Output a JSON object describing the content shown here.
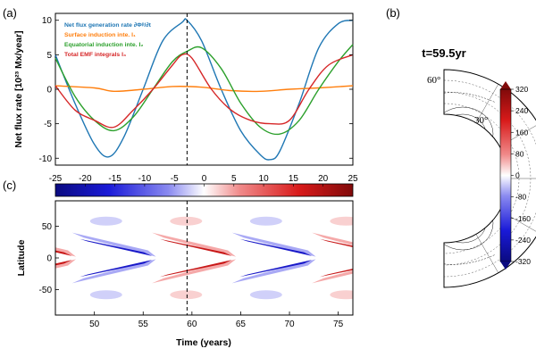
{
  "panels": {
    "a": "(a)",
    "b": "(b)",
    "c": "(c)"
  },
  "colors": {
    "net": "#1f77b4",
    "surface": "#ff7f0e",
    "equatorial": "#2ca02c",
    "emf": "#d62728"
  },
  "chart_data": [
    {
      "type": "line",
      "ylabel": "Net flux rate [10²³ Mx/year]",
      "xlim": [
        46,
        76.5
      ],
      "ylim": [
        -11,
        11
      ],
      "yticks": [
        "-10",
        "-5",
        "0",
        "5",
        "10"
      ],
      "vline_x": 59.5,
      "legend_placement": "top-left",
      "series": [
        {
          "name": "Net flux generation rate ∂Φᵖ/∂t",
          "color_key": "net",
          "x": [
            46,
            48,
            50,
            51.5,
            53,
            55,
            57,
            59,
            59.5,
            61,
            63,
            65,
            67,
            68,
            69,
            71,
            73,
            75,
            76.5
          ],
          "y": [
            5,
            -2,
            -8,
            -9.8,
            -7,
            0,
            7,
            9.7,
            10,
            7,
            0,
            -6,
            -9.5,
            -10.2,
            -9,
            -2,
            6,
            9.5,
            10
          ]
        },
        {
          "name": "Surface induction inte. I₁",
          "color_key": "surface",
          "x": [
            46,
            50,
            52,
            55,
            58,
            61,
            64,
            67,
            70,
            73,
            76.5
          ],
          "y": [
            0.5,
            0.2,
            -0.3,
            0,
            0.4,
            0.3,
            -0.2,
            -0.3,
            0,
            0.2,
            0.5
          ]
        },
        {
          "name": "Equatorial induction inte. I₂",
          "color_key": "equatorial",
          "x": [
            46,
            48,
            50,
            52,
            54,
            56,
            58,
            59.5,
            61,
            63,
            65,
            67,
            69,
            71,
            73,
            75,
            76.5
          ],
          "y": [
            4.5,
            -1,
            -4.5,
            -6,
            -4,
            0,
            4,
            5.5,
            6,
            3,
            -2,
            -5.5,
            -6.5,
            -4.5,
            0,
            4,
            6.5
          ]
        },
        {
          "name": "Total EMF integrals I₃",
          "color_key": "emf",
          "x": [
            46,
            48,
            50,
            52,
            54,
            56,
            58,
            59,
            60,
            62,
            64,
            66,
            68,
            70,
            72,
            74,
            76.5
          ],
          "y": [
            0.5,
            -3,
            -4.5,
            -5.5,
            -3,
            0,
            3.5,
            5,
            4.5,
            0,
            -3,
            -4.5,
            -5,
            -4.5,
            0,
            3.5,
            5
          ]
        }
      ]
    },
    {
      "type": "heatmap",
      "xlabel": "Time (years)",
      "ylabel": "Latitude",
      "xlim": [
        46,
        76.5
      ],
      "ylim": [
        -90,
        90
      ],
      "xticks": [
        50,
        55,
        60,
        65,
        70,
        75
      ],
      "yticks": [
        50,
        0,
        -50
      ],
      "vline_x": 59.5,
      "colorbar": {
        "range": [
          -25,
          25
        ],
        "ticks": [
          "-25",
          "-20",
          "-15",
          "-10",
          "-5",
          "0",
          "5",
          "10",
          "15",
          "20",
          "25"
        ]
      }
    },
    {
      "type": "heatmap",
      "title": "t=59.5yr",
      "latitude_labels": [
        "60°",
        "30°"
      ],
      "colorbar": {
        "range": [
          -320,
          320
        ],
        "ticks": [
          "320",
          "240",
          "160",
          "80",
          "0",
          "-80",
          "-160",
          "-240",
          "-320"
        ]
      }
    }
  ]
}
